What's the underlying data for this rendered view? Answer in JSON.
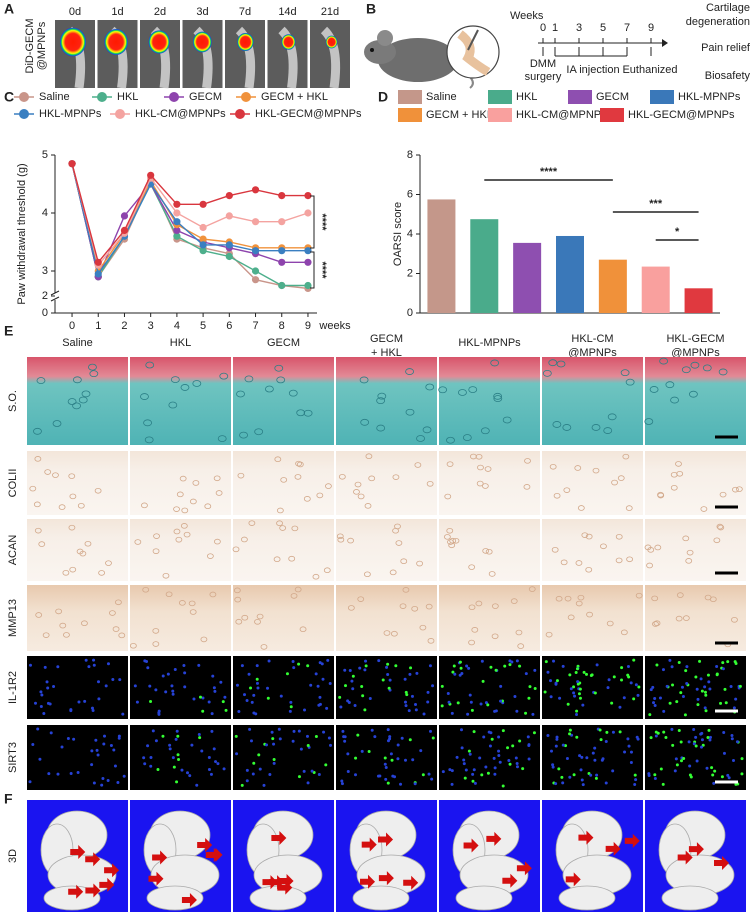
{
  "panel_labels": [
    "A",
    "B",
    "C",
    "D",
    "E",
    "F"
  ],
  "panel_a": {
    "row_label": [
      "DiD-GECM",
      "@MPNPs"
    ],
    "timepoints": [
      "0d",
      "1d",
      "2d",
      "3d",
      "7d",
      "14d",
      "21d"
    ]
  },
  "panel_b": {
    "weeks_label": "Weeks",
    "weeks": [
      0,
      1,
      3,
      5,
      7,
      9
    ],
    "events": [
      "DMM",
      "surgery",
      "IA injection",
      "Euthanized"
    ],
    "outcomes": [
      [
        "Cartilage",
        "degeneration"
      ],
      [
        "Pain relief"
      ],
      [
        "Biosafety"
      ]
    ]
  },
  "chart_data": [
    {
      "type": "line",
      "xlabel": "weeks",
      "ylabel": "Paw withdrawal threshold (g)",
      "x": [
        0,
        1,
        2,
        3,
        4,
        5,
        6,
        7,
        8,
        9
      ],
      "xlim": [
        -0.65,
        9.65
      ],
      "xticks": [
        0,
        1,
        2,
        3,
        4,
        5,
        6,
        7,
        8,
        9
      ],
      "ylim": [
        0,
        5
      ],
      "yticks": [
        0,
        2,
        3,
        4,
        5
      ],
      "annotations": [
        "****",
        "****"
      ],
      "series": [
        {
          "name": "Saline",
          "color": "#c9958a",
          "values": [
            4.85,
            2.9,
            3.55,
            4.55,
            3.55,
            3.4,
            3.3,
            2.85,
            2.75,
            2.7
          ]
        },
        {
          "name": "HKL",
          "color": "#4daf8c",
          "values": [
            4.85,
            2.9,
            3.6,
            4.5,
            3.6,
            3.35,
            3.25,
            3.0,
            2.75,
            2.75
          ]
        },
        {
          "name": "GECM",
          "color": "#8e44ad",
          "values": [
            4.85,
            2.9,
            3.95,
            4.5,
            3.7,
            3.5,
            3.4,
            3.3,
            3.15,
            3.15
          ]
        },
        {
          "name": "GECM + HKL",
          "color": "#f0923c",
          "values": [
            4.85,
            3.0,
            3.65,
            4.55,
            3.8,
            3.55,
            3.5,
            3.4,
            3.4,
            3.4
          ]
        },
        {
          "name": "HKL-MPNPs",
          "color": "#3a7fc1",
          "values": [
            4.85,
            2.95,
            3.6,
            4.5,
            3.85,
            3.45,
            3.45,
            3.35,
            3.35,
            3.35
          ]
        },
        {
          "name": "HKL-CM@MPNPs",
          "color": "#f4a3a0",
          "values": [
            4.85,
            3.1,
            3.65,
            4.6,
            4.0,
            3.75,
            3.95,
            3.85,
            3.85,
            4.0
          ]
        },
        {
          "name": "HKL-GECM@MPNPs",
          "color": "#d9363e",
          "values": [
            4.85,
            3.15,
            3.7,
            4.65,
            4.15,
            4.15,
            4.3,
            4.4,
            4.3,
            4.3
          ]
        }
      ]
    },
    {
      "type": "bar",
      "ylabel": "OARSI score",
      "categories": [
        "Saline",
        "HKL",
        "GECM",
        "HKL-MPNPs",
        "GECM + HKL",
        "HKL-CM@MPNPs",
        "HKL-GECM@MPNPs"
      ],
      "values": [
        5.75,
        4.75,
        3.55,
        3.9,
        2.7,
        2.35,
        1.25
      ],
      "colors": [
        "#c4978a",
        "#4aab8b",
        "#8e4fb0",
        "#3a78b9",
        "#f0913a",
        "#f9a09e",
        "#e0393f"
      ],
      "ylim": [
        0,
        8
      ],
      "yticks": [
        0,
        2,
        4,
        6,
        8
      ],
      "annotations": [
        "****",
        "***",
        "*"
      ]
    }
  ],
  "panel_e": {
    "groups": [
      [
        "Saline"
      ],
      [
        "HKL"
      ],
      [
        "GECM"
      ],
      [
        "GECM",
        "+ HKL"
      ],
      [
        "HKL-MPNPs"
      ],
      [
        "HKL-CM",
        "@MPNPs"
      ],
      [
        "HKL-GECM",
        "@MPNPs"
      ]
    ],
    "stains": [
      "S.O.",
      "COLII",
      "ACAN",
      "MMP13",
      "IL-1R2",
      "SIRT3"
    ]
  },
  "panel_f": {
    "row_label": "3D"
  }
}
